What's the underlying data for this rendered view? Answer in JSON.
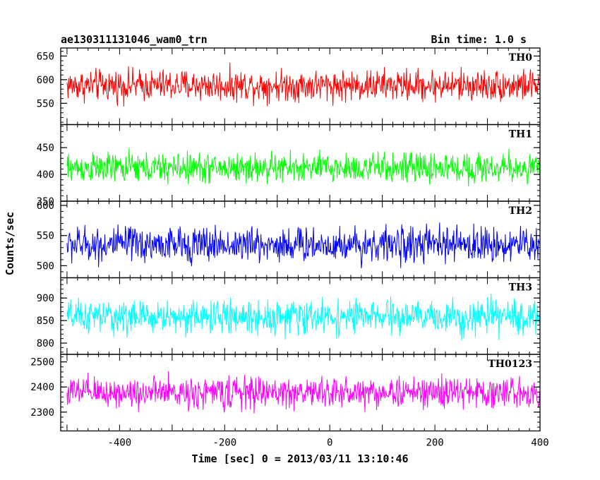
{
  "chart_data": {
    "type": "line",
    "title_left": "ae130311131046_wam0_trn",
    "title_right": "Bin time: 1.0 s",
    "xlabel": "Time [sec] 0 = 2013/03/11 13:10:46",
    "ylabel": "Counts/sec",
    "xlim": [
      -512,
      400
    ],
    "x_ticks": [
      -400,
      -200,
      0,
      200,
      400
    ],
    "x_range": [
      -500,
      400
    ],
    "grid": false,
    "panels": [
      {
        "name": "TH0",
        "color": "#ff0000",
        "ylim": [
          505,
          667
        ],
        "yticks": [
          550,
          600,
          650
        ],
        "mean": 588,
        "spread": 45
      },
      {
        "name": "TH1",
        "color": "#00ff00",
        "ylim": [
          350,
          493
        ],
        "yticks": [
          350,
          400,
          450
        ],
        "mean": 412,
        "spread": 38
      },
      {
        "name": "TH2",
        "color": "#0000ff",
        "ylim": [
          480,
          607
        ],
        "yticks": [
          500,
          550,
          600
        ],
        "mean": 535,
        "spread": 40
      },
      {
        "name": "TH3",
        "color": "#00ffff",
        "ylim": [
          775,
          945
        ],
        "yticks": [
          800,
          850,
          900
        ],
        "mean": 858,
        "spread": 50
      },
      {
        "name": "TH0123",
        "color": "#ff00ff",
        "ylim": [
          2225,
          2530
        ],
        "yticks": [
          2300,
          2400,
          2500
        ],
        "mean": 2378,
        "spread": 85
      }
    ]
  }
}
